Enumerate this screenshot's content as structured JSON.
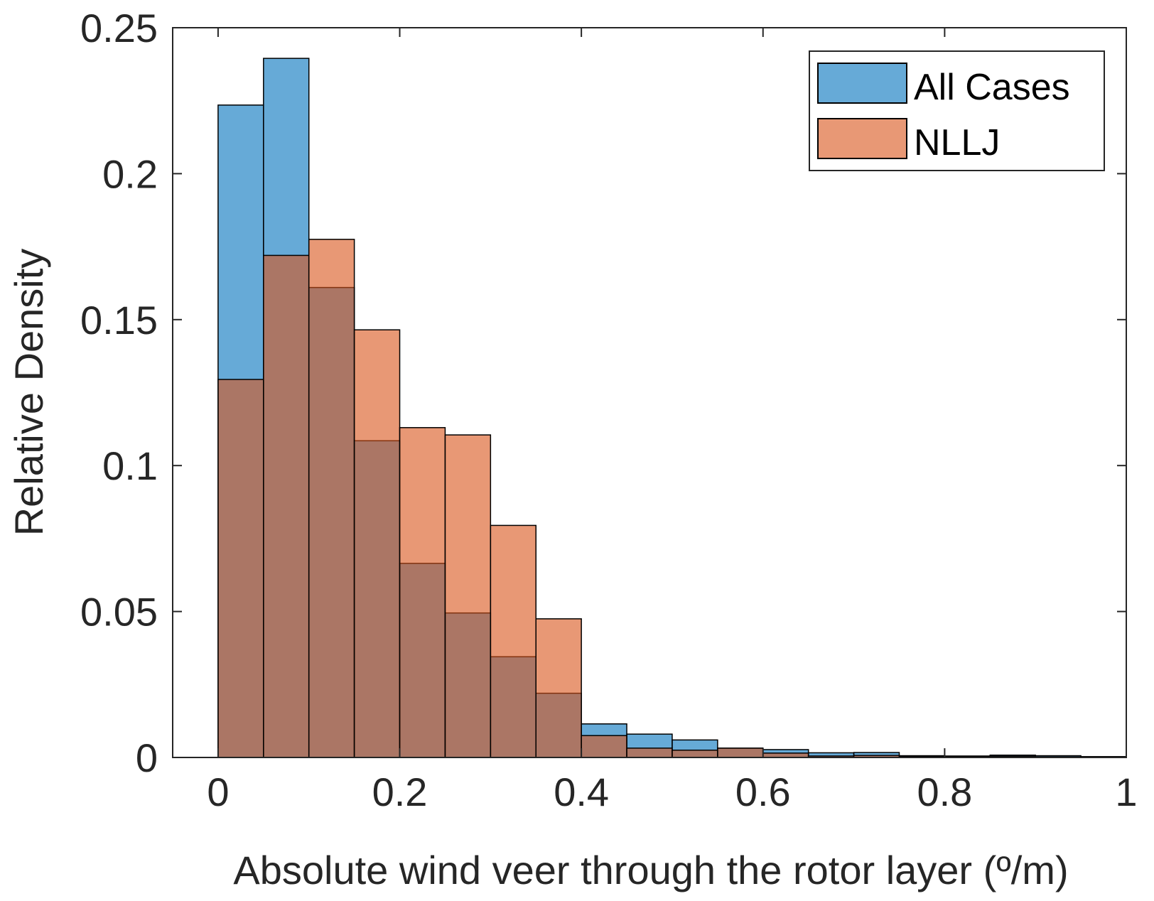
{
  "chart_data": {
    "type": "bar",
    "xlabel": "Absolute wind veer through the rotor layer (º/m)",
    "ylabel": "Relative Density",
    "xlim": [
      -0.05,
      1
    ],
    "ylim": [
      0,
      0.25
    ],
    "xticks": [
      0,
      0.2,
      0.4,
      0.6,
      0.8,
      1
    ],
    "xtick_labels": [
      "0",
      "0.2",
      "0.4",
      "0.6",
      "0.8",
      "1"
    ],
    "yticks": [
      0,
      0.05,
      0.1,
      0.15,
      0.2,
      0.25
    ],
    "ytick_labels": [
      "0",
      "0.05",
      "0.1",
      "0.15",
      "0.2",
      "0.25"
    ],
    "bin_edges": [
      0,
      0.05,
      0.1,
      0.15,
      0.2,
      0.25,
      0.3,
      0.35,
      0.4,
      0.45,
      0.5,
      0.55,
      0.6,
      0.65,
      0.7,
      0.75,
      0.8,
      0.85,
      0.9,
      0.95,
      1.0
    ],
    "series": [
      {
        "name": "All Cases",
        "color": "#0072BD",
        "values": [
          0.2235,
          0.2395,
          0.161,
          0.1085,
          0.0665,
          0.0495,
          0.0345,
          0.022,
          0.0115,
          0.008,
          0.006,
          0.0032,
          0.0027,
          0.0016,
          0.0017,
          0.0006,
          0.0005,
          0.0008,
          0.0006,
          0.0003
        ]
      },
      {
        "name": "NLLJ",
        "color": "#D95319",
        "values": [
          0.1295,
          0.172,
          0.1775,
          0.1465,
          0.113,
          0.1105,
          0.0795,
          0.0475,
          0.0075,
          0.0032,
          0.0025,
          0.0032,
          0.0015,
          0.0005,
          0.0007,
          0.0003,
          0.0003,
          0.0004,
          0.0002,
          0.0001
        ]
      }
    ],
    "legend": {
      "position": "top-right"
    },
    "grid": false
  }
}
